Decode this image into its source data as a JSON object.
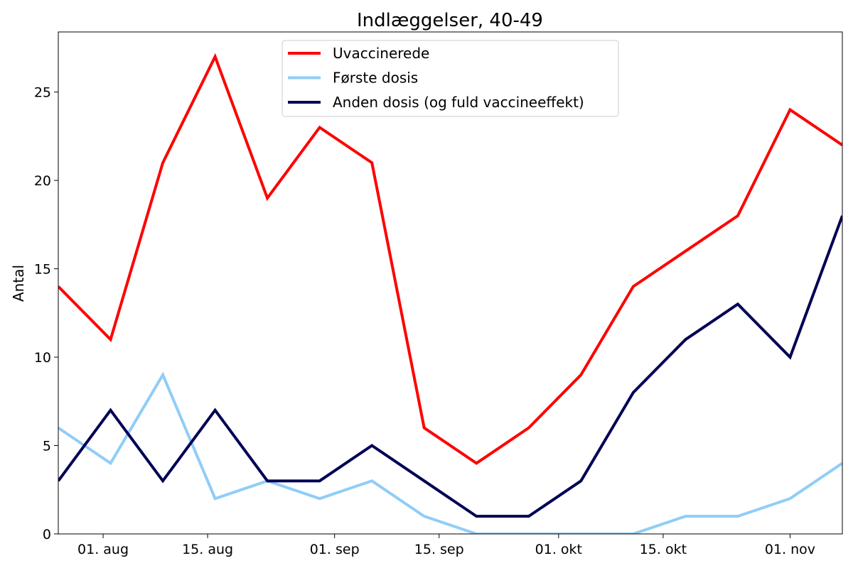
{
  "chart_data": {
    "type": "line",
    "title": "Indlæggelser, 40-49",
    "xlabel": "",
    "ylabel": "Antal",
    "x": [
      "2021-07-26",
      "2021-08-02",
      "2021-08-09",
      "2021-08-16",
      "2021-08-23",
      "2021-08-30",
      "2021-09-06",
      "2021-09-13",
      "2021-09-20",
      "2021-09-27",
      "2021-10-04",
      "2021-10-11",
      "2021-10-18",
      "2021-10-25",
      "2021-11-01",
      "2021-11-08"
    ],
    "xlim": [
      "2021-07-26",
      "2021-11-08"
    ],
    "ylim": [
      0,
      28.4
    ],
    "x_ticks": [
      {
        "date": "2021-08-01",
        "label": "01. aug"
      },
      {
        "date": "2021-08-15",
        "label": "15. aug"
      },
      {
        "date": "2021-09-01",
        "label": "01. sep"
      },
      {
        "date": "2021-09-15",
        "label": "15. sep"
      },
      {
        "date": "2021-10-01",
        "label": "01. okt"
      },
      {
        "date": "2021-10-15",
        "label": "15. okt"
      },
      {
        "date": "2021-11-01",
        "label": "01. nov"
      }
    ],
    "y_ticks": [
      0,
      5,
      10,
      15,
      20,
      25
    ],
    "grid": false,
    "legend_position": "top-center",
    "series": [
      {
        "name": "Uvaccinerede",
        "color": "#ff0000",
        "values": [
          14,
          11,
          21,
          27,
          19,
          23,
          21,
          6,
          4,
          6,
          9,
          14,
          16,
          18,
          24,
          22
        ]
      },
      {
        "name": "Første dosis",
        "color": "#90cdf8",
        "values": [
          6,
          4,
          9,
          2,
          3,
          2,
          3,
          1,
          0,
          0,
          0,
          0,
          1,
          1,
          2,
          4
        ]
      },
      {
        "name": "Anden dosis (og fuld vaccineeffekt)",
        "color": "#000055",
        "values": [
          3,
          7,
          3,
          7,
          3,
          3,
          5,
          3,
          1,
          1,
          3,
          8,
          11,
          13,
          10,
          18
        ]
      }
    ]
  }
}
